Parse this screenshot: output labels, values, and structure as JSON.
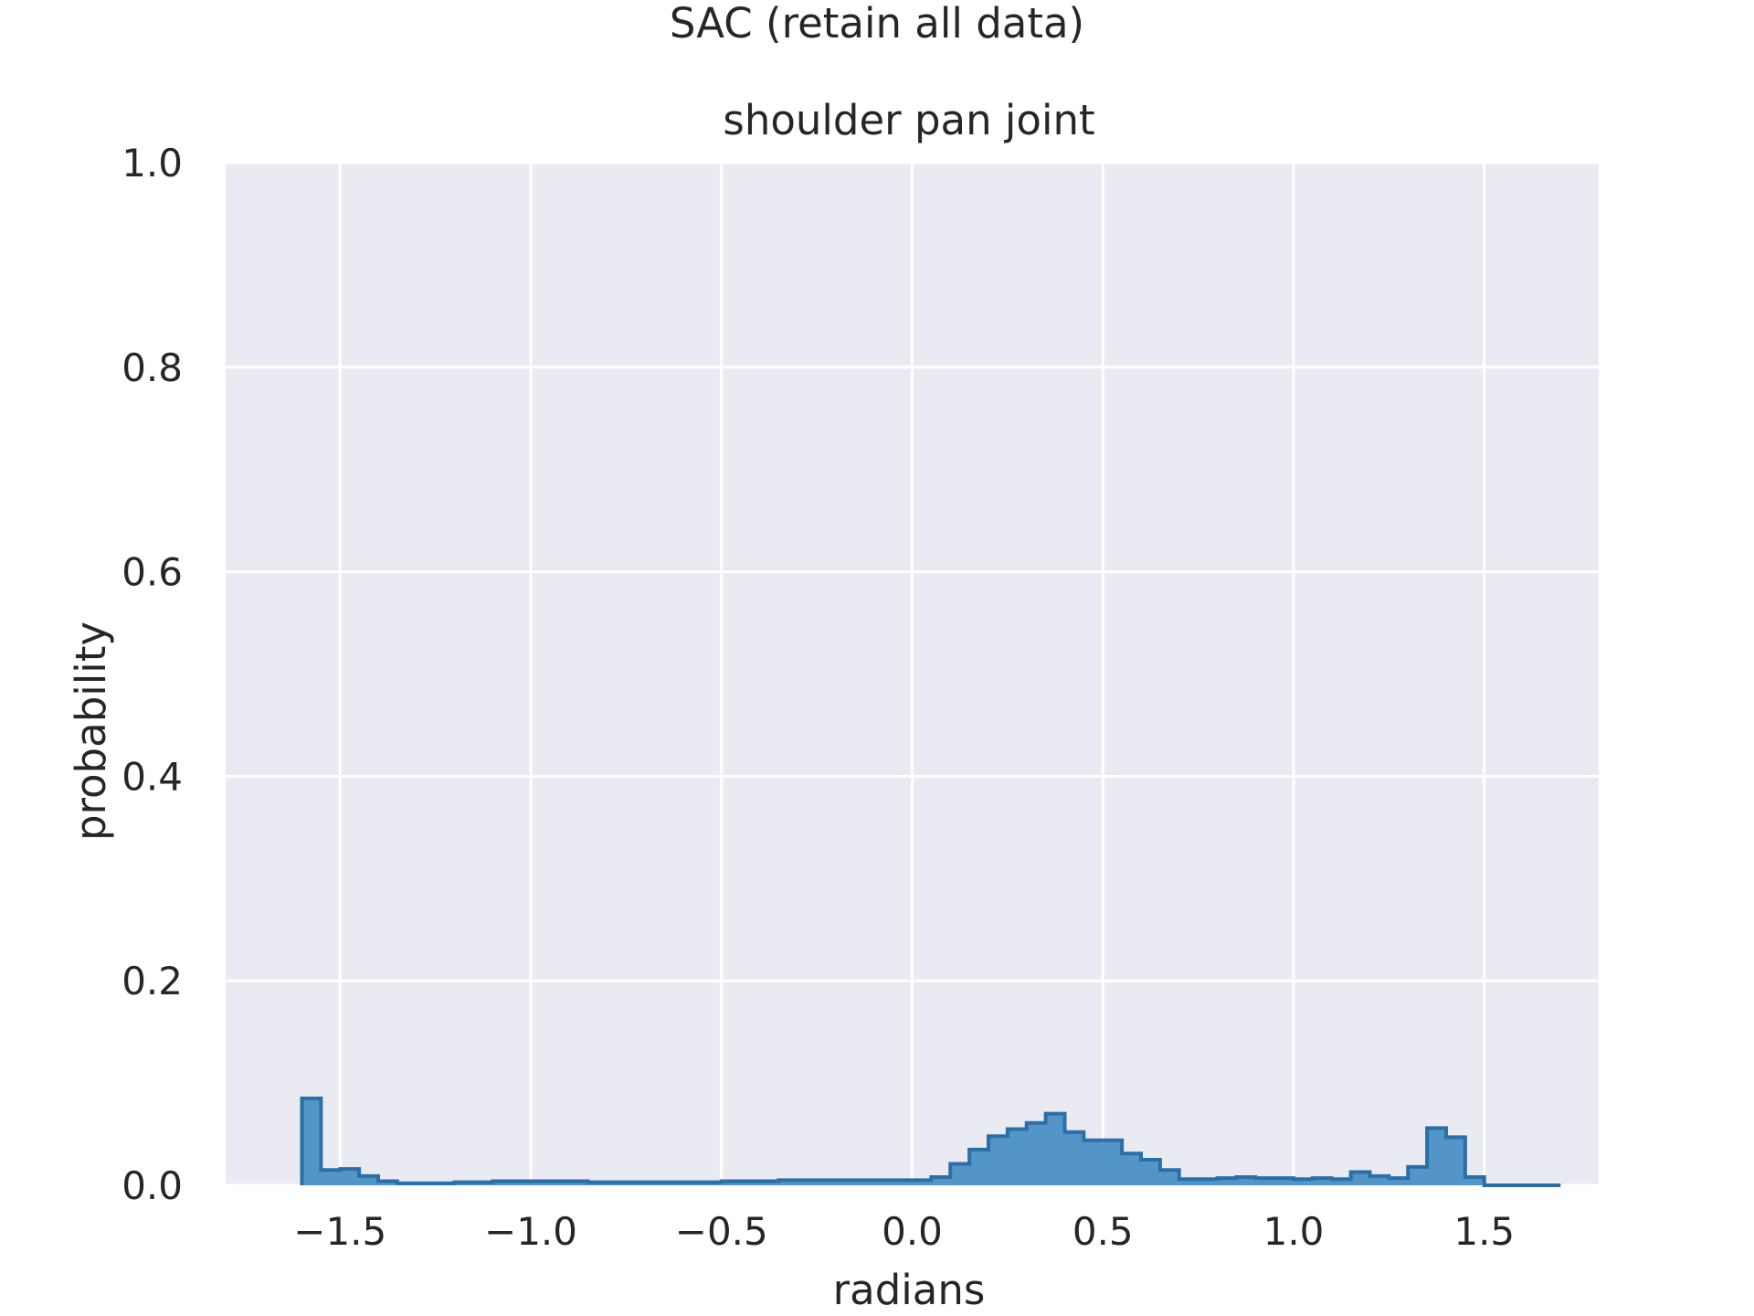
{
  "chart_data": {
    "type": "histogram",
    "suptitle": "SAC (retain all data)",
    "title": "shoulder pan joint",
    "xlabel": "radians",
    "ylabel": "probability",
    "xlim": [
      -1.8,
      1.8
    ],
    "ylim": [
      0.0,
      1.0
    ],
    "x_ticks": [
      -1.5,
      -1.0,
      -0.5,
      0.0,
      0.5,
      1.0,
      1.5
    ],
    "x_tick_labels": [
      "−1.5",
      "−1.0",
      "−0.5",
      "0.0",
      "0.5",
      "1.0",
      "1.5"
    ],
    "y_ticks": [
      0.0,
      0.2,
      0.4,
      0.6,
      0.8,
      1.0
    ],
    "y_tick_labels": [
      "0.0",
      "0.2",
      "0.4",
      "0.6",
      "0.8",
      "1.0"
    ],
    "grid": true,
    "bin_start": -1.6,
    "bin_width": 0.05,
    "values": [
      0.085,
      0.015,
      0.016,
      0.009,
      0.004,
      0.002,
      0.002,
      0.002,
      0.003,
      0.003,
      0.004,
      0.004,
      0.004,
      0.004,
      0.004,
      0.003,
      0.003,
      0.003,
      0.003,
      0.003,
      0.003,
      0.003,
      0.004,
      0.004,
      0.004,
      0.005,
      0.005,
      0.005,
      0.005,
      0.005,
      0.005,
      0.005,
      0.005,
      0.008,
      0.021,
      0.035,
      0.048,
      0.055,
      0.061,
      0.07,
      0.052,
      0.044,
      0.044,
      0.031,
      0.025,
      0.015,
      0.006,
      0.006,
      0.007,
      0.008,
      0.007,
      0.007,
      0.006,
      0.007,
      0.006,
      0.013,
      0.009,
      0.007,
      0.018,
      0.056,
      0.047,
      0.008,
      0.0,
      0.0,
      0.0,
      0.0
    ],
    "colors": {
      "bar_fill": "#5495c8",
      "bar_edge": "#2a6fa8",
      "plot_background": "#eaeaf2",
      "grid": "#ffffff"
    }
  }
}
